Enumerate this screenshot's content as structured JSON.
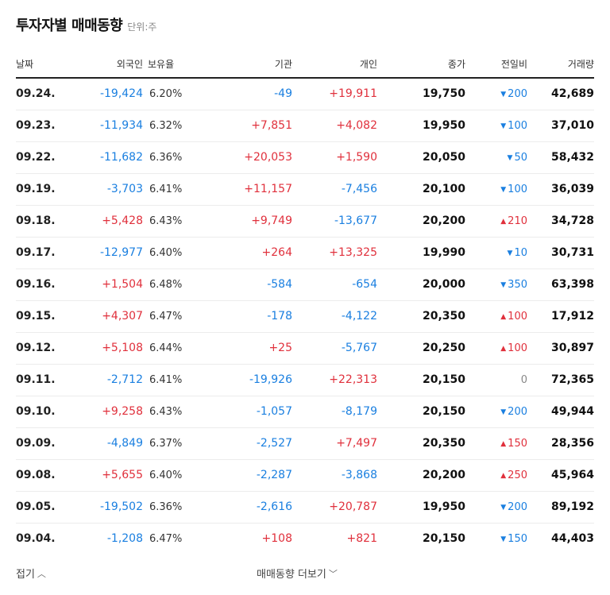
{
  "header": {
    "title": "투자자별 매매동향",
    "unit": "단위:주"
  },
  "columns": [
    "날짜",
    "외국인",
    "보유율",
    "기관",
    "개인",
    "종가",
    "전일비",
    "거래량"
  ],
  "rows": [
    {
      "date": "09.24.",
      "foreign": "-19,424",
      "ownership": "6.20%",
      "institution": "-49",
      "individual": "+19,911",
      "close": "19,750",
      "change": "200",
      "change_dir": "down",
      "volume": "42,689"
    },
    {
      "date": "09.23.",
      "foreign": "-11,934",
      "ownership": "6.32%",
      "institution": "+7,851",
      "individual": "+4,082",
      "close": "19,950",
      "change": "100",
      "change_dir": "down",
      "volume": "37,010"
    },
    {
      "date": "09.22.",
      "foreign": "-11,682",
      "ownership": "6.36%",
      "institution": "+20,053",
      "individual": "+1,590",
      "close": "20,050",
      "change": "50",
      "change_dir": "down",
      "volume": "58,432"
    },
    {
      "date": "09.19.",
      "foreign": "-3,703",
      "ownership": "6.41%",
      "institution": "+11,157",
      "individual": "-7,456",
      "close": "20,100",
      "change": "100",
      "change_dir": "down",
      "volume": "36,039"
    },
    {
      "date": "09.18.",
      "foreign": "+5,428",
      "ownership": "6.43%",
      "institution": "+9,749",
      "individual": "-13,677",
      "close": "20,200",
      "change": "210",
      "change_dir": "up",
      "volume": "34,728"
    },
    {
      "date": "09.17.",
      "foreign": "-12,977",
      "ownership": "6.40%",
      "institution": "+264",
      "individual": "+13,325",
      "close": "19,990",
      "change": "10",
      "change_dir": "down",
      "volume": "30,731"
    },
    {
      "date": "09.16.",
      "foreign": "+1,504",
      "ownership": "6.48%",
      "institution": "-584",
      "individual": "-654",
      "close": "20,000",
      "change": "350",
      "change_dir": "down",
      "volume": "63,398"
    },
    {
      "date": "09.15.",
      "foreign": "+4,307",
      "ownership": "6.47%",
      "institution": "-178",
      "individual": "-4,122",
      "close": "20,350",
      "change": "100",
      "change_dir": "up",
      "volume": "17,912"
    },
    {
      "date": "09.12.",
      "foreign": "+5,108",
      "ownership": "6.44%",
      "institution": "+25",
      "individual": "-5,767",
      "close": "20,250",
      "change": "100",
      "change_dir": "up",
      "volume": "30,897"
    },
    {
      "date": "09.11.",
      "foreign": "-2,712",
      "ownership": "6.41%",
      "institution": "-19,926",
      "individual": "+22,313",
      "close": "20,150",
      "change": "0",
      "change_dir": "none",
      "volume": "72,365"
    },
    {
      "date": "09.10.",
      "foreign": "+9,258",
      "ownership": "6.43%",
      "institution": "-1,057",
      "individual": "-8,179",
      "close": "20,150",
      "change": "200",
      "change_dir": "down",
      "volume": "49,944"
    },
    {
      "date": "09.09.",
      "foreign": "-4,849",
      "ownership": "6.37%",
      "institution": "-2,527",
      "individual": "+7,497",
      "close": "20,350",
      "change": "150",
      "change_dir": "up",
      "volume": "28,356"
    },
    {
      "date": "09.08.",
      "foreign": "+5,655",
      "ownership": "6.40%",
      "institution": "-2,287",
      "individual": "-3,868",
      "close": "20,200",
      "change": "250",
      "change_dir": "up",
      "volume": "45,964"
    },
    {
      "date": "09.05.",
      "foreign": "-19,502",
      "ownership": "6.36%",
      "institution": "-2,616",
      "individual": "+20,787",
      "close": "19,950",
      "change": "200",
      "change_dir": "down",
      "volume": "89,192"
    },
    {
      "date": "09.04.",
      "foreign": "-1,208",
      "ownership": "6.47%",
      "institution": "+108",
      "individual": "+821",
      "close": "20,150",
      "change": "150",
      "change_dir": "down",
      "volume": "44,403"
    }
  ],
  "footer": {
    "fold_label": "접기",
    "more_label": "매매동향 더보기"
  },
  "colors": {
    "up": "#e0303c",
    "down": "#1a7fe0"
  }
}
